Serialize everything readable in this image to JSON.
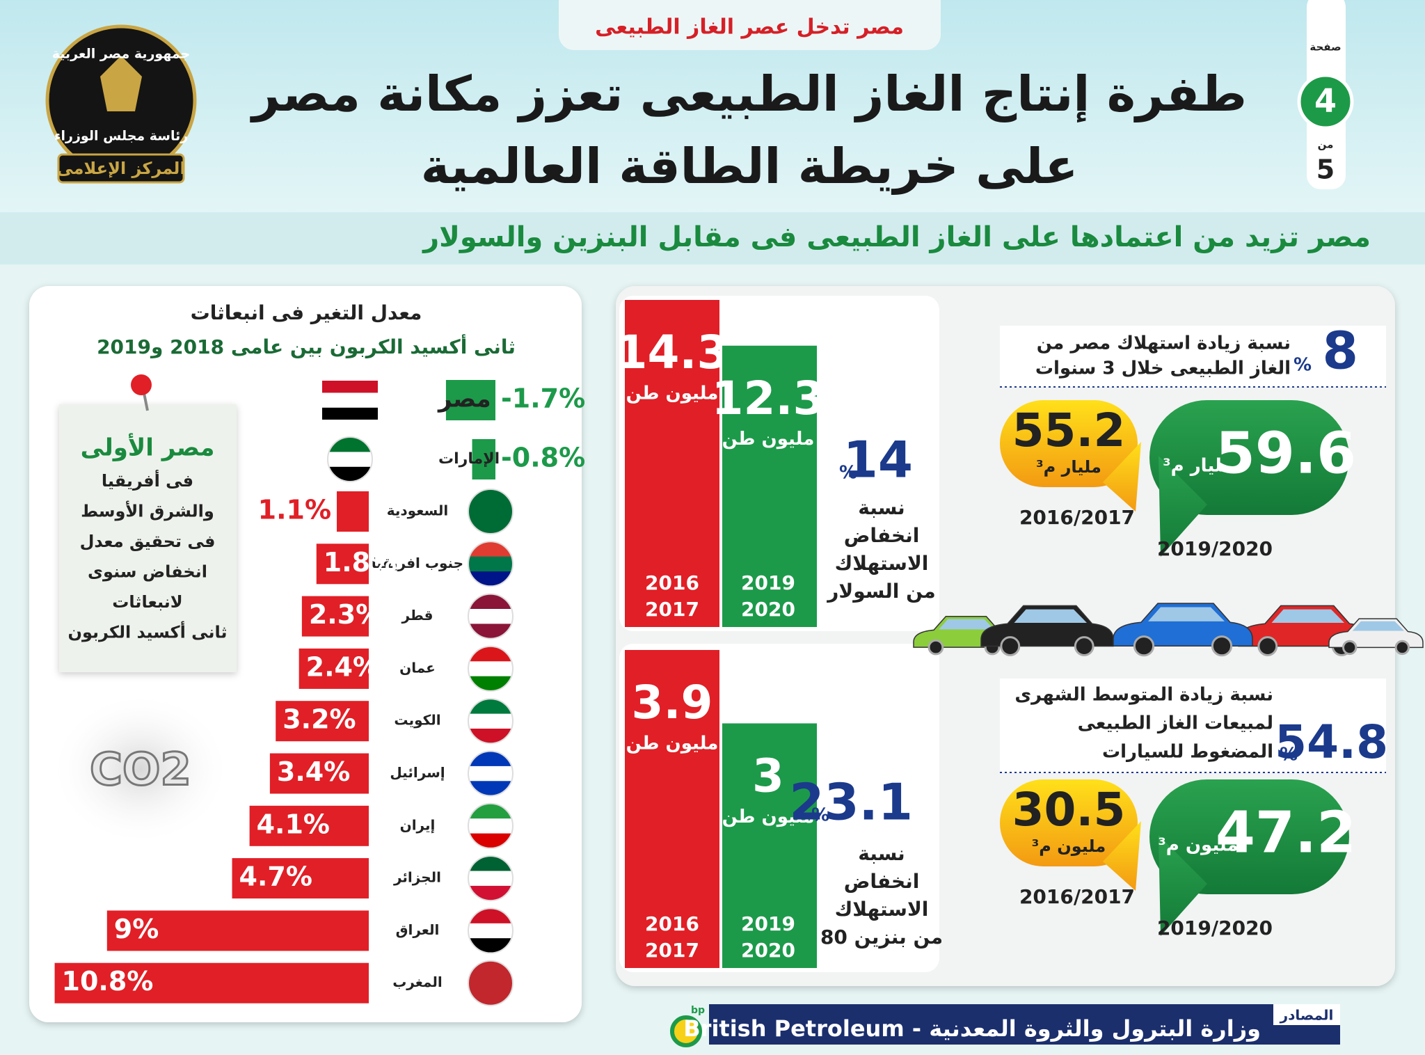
{
  "header": {
    "tag": "مصر تدخل عصر الغاز الطبيعى",
    "title": [
      "طفرة إنتاج الغاز الطبيعى تعزز مكانة مصر",
      "على خريطة الطاقة العالمية"
    ],
    "page_label": "صفحة",
    "page": "4",
    "of_label": "من",
    "pages": "5",
    "logo": [
      "جمهورية مصر العربية",
      "رئاسة مجلس الوزراء",
      "المركز الإعلامى"
    ]
  },
  "subtitle": "مصر تزيد من اعتمادها على الغاز الطبيعى فى مقابل البنزين والسولار",
  "chart_data": {
    "type": "bar",
    "orientation": "horizontal",
    "title": "معدل التغير فى انبعاثات",
    "subtitle": "ثانى أكسيد الكربون بين عامى 2018 و2019",
    "categories": [
      "مصر",
      "الإمارات",
      "السعودية",
      "جنوب افريقيا",
      "قطر",
      "عمان",
      "الكويت",
      "إسرائيل",
      "إيران",
      "الجزائر",
      "العراق",
      "المغرب"
    ],
    "values": [
      -1.7,
      -0.8,
      1.1,
      1.8,
      2.3,
      2.4,
      3.2,
      3.4,
      4.1,
      4.7,
      9,
      10.8
    ],
    "value_labels": [
      "-1.7%",
      "-0.8%",
      "1.1%",
      "1.8%",
      "2.3%",
      "2.4%",
      "3.2%",
      "3.4%",
      "4.1%",
      "4.7%",
      "9%",
      "10.8%"
    ],
    "color": "#e11f26",
    "negative_color": "#1c9a4a"
  },
  "note": {
    "title": "مصر الأولى",
    "lines": [
      "فى أفريقيا",
      "والشرق الأوسط",
      "فى تحقيق معدل",
      "انخفاض سنوى",
      "لانبعاثات",
      "ثانى أكسيد الكربون"
    ],
    "co2": "CO2"
  },
  "consumption": {
    "pct": "8",
    "pct_sign": "%",
    "text": [
      "نسبة زيادة استهلاك مصر من",
      "الغاز الطبيعى خلال 3 سنوات"
    ],
    "current": {
      "value": "59.6",
      "unit": "مليار م³",
      "period": "2019/2020"
    },
    "previous": {
      "value": "55.2",
      "unit": "مليار م³",
      "period": "2016/2017"
    }
  },
  "diesel": {
    "before": {
      "value": 14.3,
      "unit": "مليون طن",
      "years": [
        "2016",
        "2017"
      ]
    },
    "after": {
      "value": 12.3,
      "unit": "مليون طن",
      "years": [
        "2019",
        "2020"
      ]
    },
    "pct": "14",
    "pct_sign": "%",
    "text": [
      "نسبة",
      "انخفاض",
      "الاستهلاك",
      "من السولار"
    ]
  },
  "gasoline": {
    "before": {
      "value": 3.9,
      "unit": "مليون طن",
      "years": [
        "2016",
        "2017"
      ]
    },
    "after": {
      "value": 3,
      "unit": "مليون طن",
      "years": [
        "2019",
        "2020"
      ]
    },
    "pct": "23.1",
    "pct_sign": "%",
    "text": [
      "نسبة",
      "انخفاض",
      "الاستهلاك",
      "من بنزين 80"
    ]
  },
  "cng": {
    "pct": "54.8",
    "pct_sign": "%",
    "text": [
      "نسبة زيادة المتوسط الشهرى",
      "لمبيعات الغاز الطبيعى",
      "المضغوط للسيارات"
    ],
    "current": {
      "value": "47.2",
      "unit": "مليون م³",
      "period": "2019/2020"
    },
    "previous": {
      "value": "30.5",
      "unit": "مليون م³",
      "period": "2016/2017"
    }
  },
  "sources": {
    "label": "المصادر",
    "text": "وزارة البترول والثروة المعدنية  -  British Petroleum",
    "logo": "bp"
  }
}
